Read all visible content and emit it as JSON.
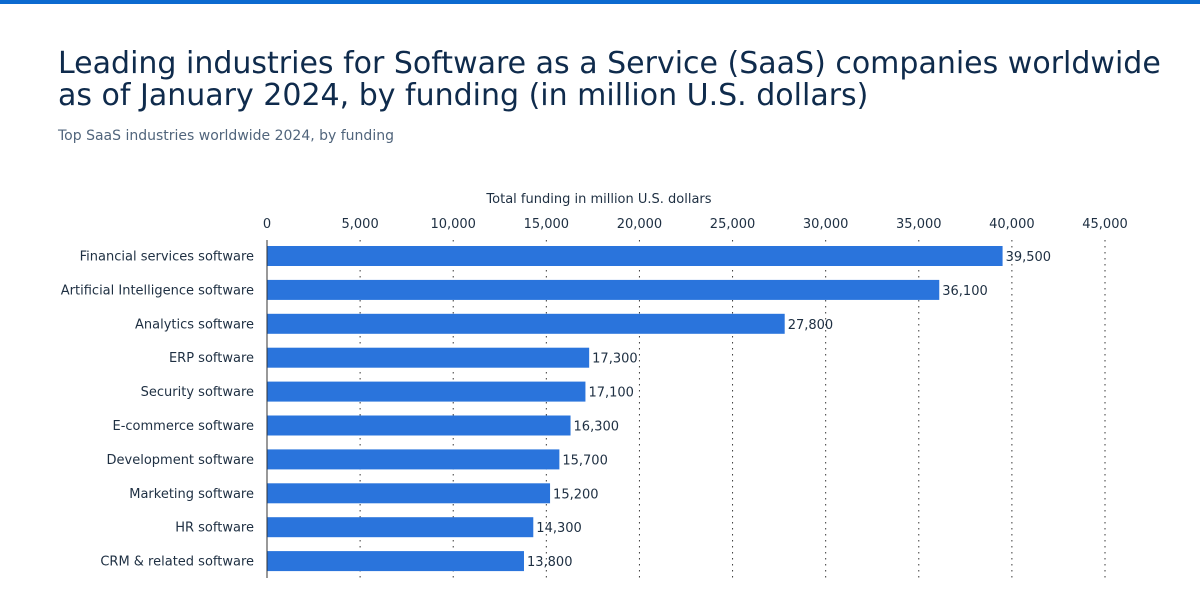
{
  "title": "Leading industries for Software as a Service (SaaS) companies worldwide as of January 2024, by funding (in million U.S. dollars)",
  "subtitle": "Top SaaS industries worldwide 2024, by funding",
  "colors": {
    "bar": "#2a74dc",
    "accent": "#0c6ad0",
    "title": "#0f2b4c"
  },
  "chart_data": {
    "type": "bar",
    "orientation": "horizontal",
    "xlabel": "Total funding in million U.S. dollars",
    "xlim": [
      0,
      45000
    ],
    "ticks": [
      0,
      5000,
      10000,
      15000,
      20000,
      25000,
      30000,
      35000,
      40000,
      45000
    ],
    "tick_labels": [
      "0",
      "5,000",
      "10,000",
      "15,000",
      "20,000",
      "25,000",
      "30,000",
      "35,000",
      "40,000",
      "45,000"
    ],
    "grid": true,
    "categories": [
      "Financial services software",
      "Artificial Intelligence software",
      "Analytics software",
      "ERP software",
      "Security software",
      "E-commerce software",
      "Development software",
      "Marketing software",
      "HR software",
      "CRM & related software"
    ],
    "values": [
      39500,
      36100,
      27800,
      17300,
      17100,
      16300,
      15700,
      15200,
      14300,
      13800
    ],
    "value_labels": [
      "39,500",
      "36,100",
      "27,800",
      "17,300",
      "17,100",
      "16,300",
      "15,700",
      "15,200",
      "14,300",
      "13,800"
    ]
  }
}
